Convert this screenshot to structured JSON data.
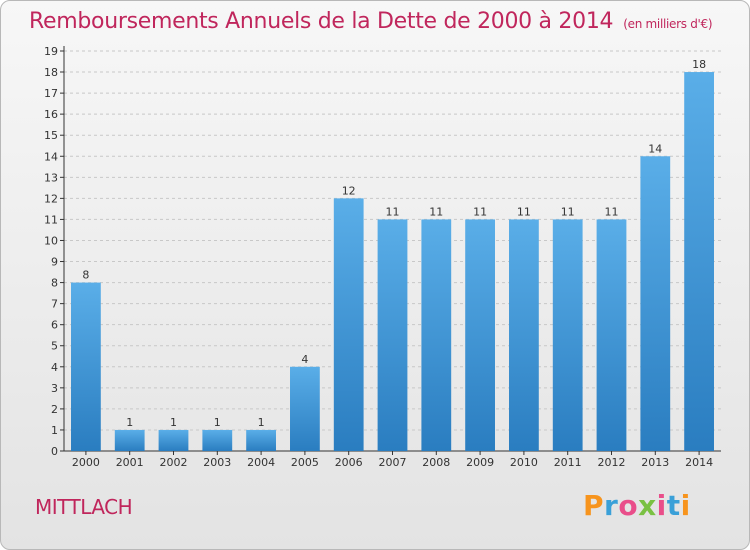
{
  "header": {
    "title": "Remboursements Annuels de la Dette de 2000 à 2014",
    "subtitle": "(en milliers d'€)"
  },
  "footer": {
    "location": "MITTLACH",
    "brand": "Proxiti",
    "brand_colors": [
      "#f7941d",
      "#3aa0d8",
      "#e94e8a",
      "#7ac143",
      "#e94e8a",
      "#3aa0d8",
      "#f7941d"
    ]
  },
  "colors": {
    "title": "#c0265c",
    "bar_light": "#5aaee8",
    "bar_dark": "#2a7dc0",
    "axis": "#333333",
    "grid": "#c8c8c8"
  },
  "chart_data": {
    "type": "bar",
    "categories": [
      "2000",
      "2001",
      "2002",
      "2003",
      "2004",
      "2005",
      "2006",
      "2007",
      "2008",
      "2009",
      "2010",
      "2011",
      "2012",
      "2013",
      "2014"
    ],
    "values": [
      8,
      1,
      1,
      1,
      1,
      4,
      12,
      11,
      11,
      11,
      11,
      11,
      11,
      14,
      18
    ],
    "title": "Remboursements Annuels de la Dette de 2000 à 2014",
    "xlabel": "",
    "ylabel": "",
    "ylim": [
      0,
      19
    ],
    "yticks": [
      0,
      1,
      2,
      3,
      4,
      5,
      6,
      7,
      8,
      9,
      10,
      11,
      12,
      13,
      14,
      15,
      16,
      17,
      18,
      19
    ],
    "grid": true,
    "data_labels": true
  }
}
